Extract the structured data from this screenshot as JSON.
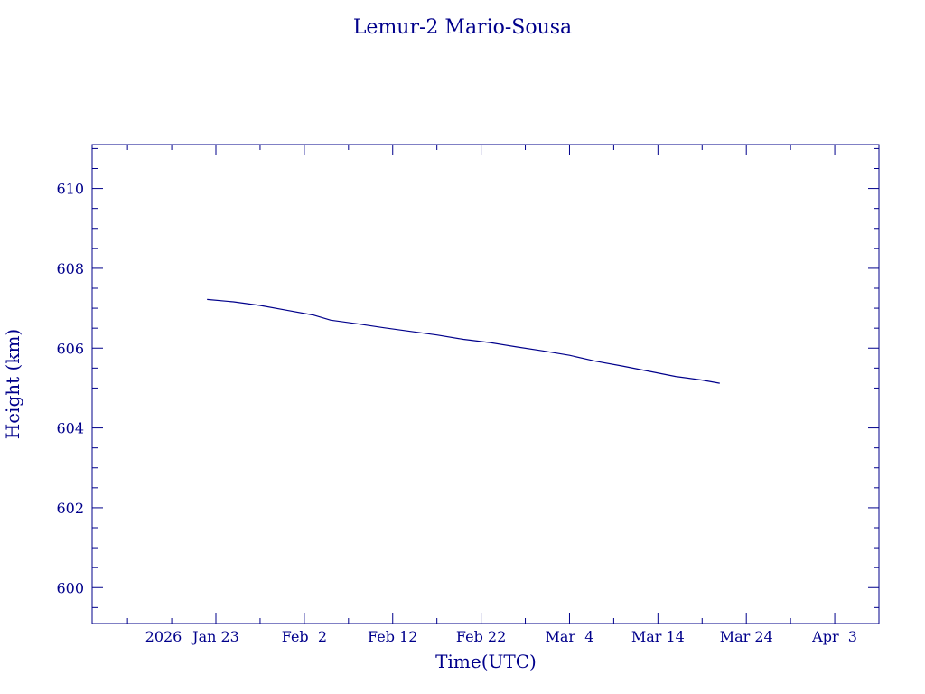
{
  "chart_data": {
    "type": "line",
    "title": "Lemur-2 Mario-Sousa",
    "xlabel": "Time(UTC)",
    "ylabel": "Height (km)",
    "xlim": [
      "2026-01-09",
      "2026-04-08"
    ],
    "ylim": [
      599.1,
      611.1
    ],
    "x_ticks": [
      {
        "date": "2026-01-23",
        "label": "2026 Jan 23"
      },
      {
        "date": "2026-02-02",
        "label": "Feb  2"
      },
      {
        "date": "2026-02-12",
        "label": "Feb 12"
      },
      {
        "date": "2026-02-22",
        "label": "Feb 22"
      },
      {
        "date": "2026-03-04",
        "label": "Mar  4"
      },
      {
        "date": "2026-03-14",
        "label": "Mar 14"
      },
      {
        "date": "2026-03-24",
        "label": "Mar 24"
      },
      {
        "date": "2026-04-03",
        "label": "Apr  3"
      }
    ],
    "y_ticks": [
      600,
      602,
      604,
      606,
      608,
      610
    ],
    "color": "#00008b",
    "series": [
      {
        "x": [
          "2026-01-22",
          "2026-01-25",
          "2026-01-28",
          "2026-01-31",
          "2026-02-03",
          "2026-02-05",
          "2026-02-08",
          "2026-02-11",
          "2026-02-14",
          "2026-02-17",
          "2026-02-20",
          "2026-02-23",
          "2026-02-26",
          "2026-03-01",
          "2026-03-04",
          "2026-03-07",
          "2026-03-10",
          "2026-03-13",
          "2026-03-16",
          "2026-03-19",
          "2026-03-21"
        ],
        "y": [
          607.22,
          607.16,
          607.07,
          606.95,
          606.83,
          606.7,
          606.61,
          606.51,
          606.42,
          606.33,
          606.22,
          606.14,
          606.03,
          605.93,
          605.82,
          605.67,
          605.55,
          605.42,
          605.29,
          605.2,
          605.12
        ]
      }
    ]
  }
}
